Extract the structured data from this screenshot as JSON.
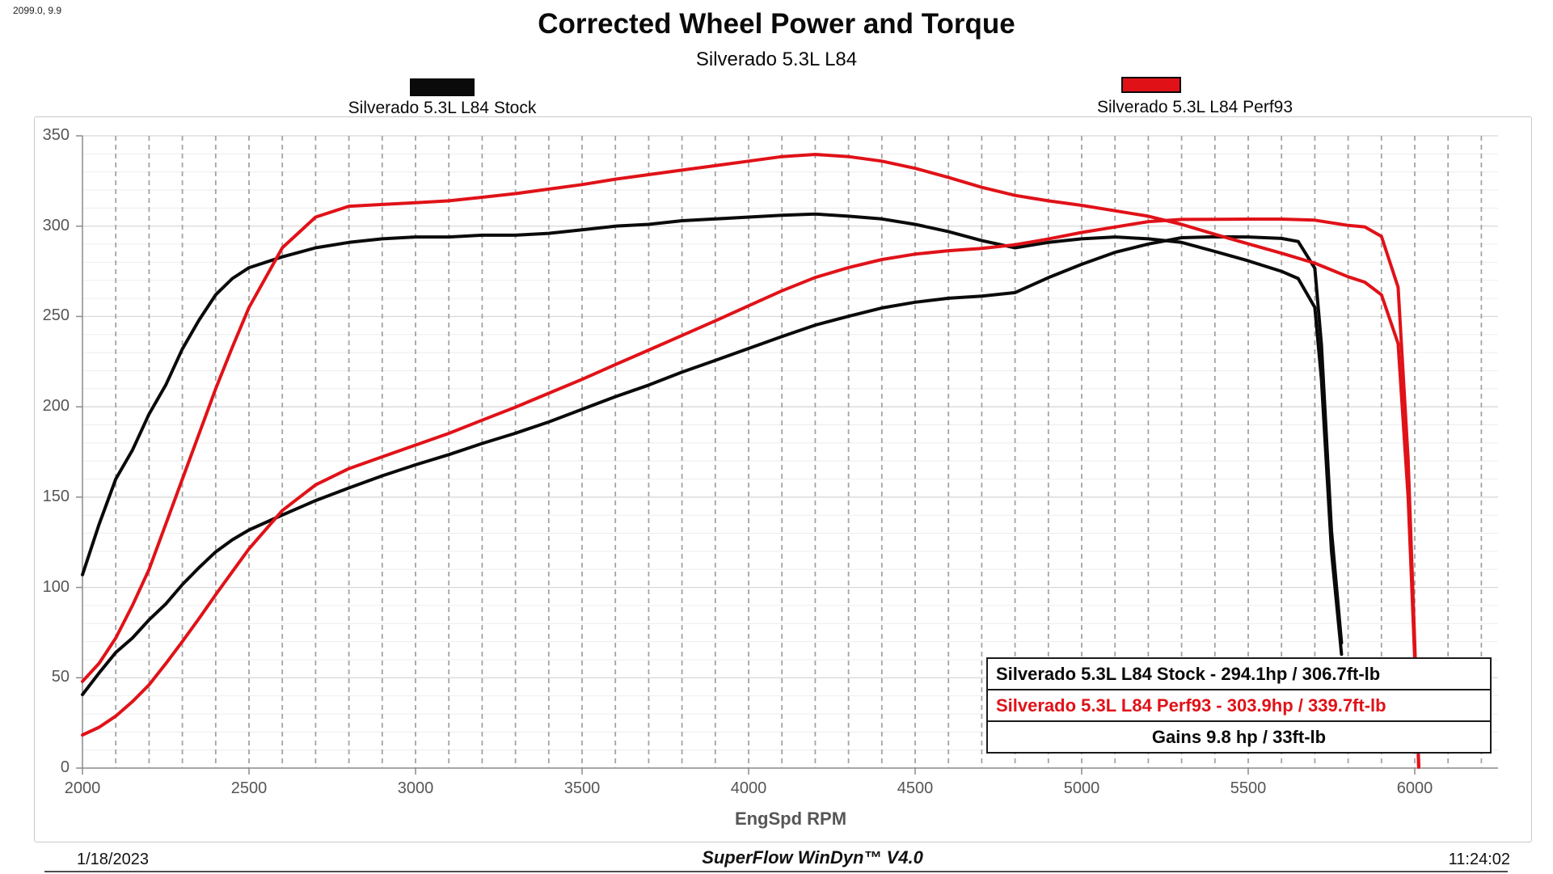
{
  "page": {
    "corner_readout": "2099.0, 9.9",
    "title": "Corrected Wheel Power and Torque",
    "subtitle": "Silverado 5.3L L84"
  },
  "legend": [
    {
      "label": "Silverado 5.3L L84 Stock",
      "color": "#0a0a0a"
    },
    {
      "label": "Silverado 5.3L L84 Perf93",
      "color": "#e01218"
    }
  ],
  "results_box": {
    "rows": [
      {
        "text": "Silverado 5.3L L84 Stock - 294.1hp / 306.7ft-lb",
        "color": "#0a0a0a"
      },
      {
        "text": "Silverado 5.3L L84 Perf93 - 303.9hp / 339.7ft-lb",
        "color": "#e01218"
      },
      {
        "text": "Gains 9.8 hp / 33ft-lb",
        "color": "#0a0a0a"
      }
    ]
  },
  "footer": {
    "date": "1/18/2023",
    "software": "SuperFlow WinDyn™ V4.0",
    "time": "11:24:02"
  },
  "chart_data": {
    "type": "line",
    "title": "Corrected Wheel Power and Torque",
    "subtitle": "Silverado 5.3L L84",
    "xlabel": "EngSpd RPM",
    "ylabel": "",
    "xlim": [
      2000,
      6250
    ],
    "ylim": [
      0,
      350
    ],
    "x_ticks": [
      2000,
      2500,
      3000,
      3500,
      4000,
      4500,
      5000,
      5500,
      6000
    ],
    "y_ticks": [
      0,
      50,
      100,
      150,
      200,
      250,
      300,
      350
    ],
    "x_minor_step": 100,
    "y_minor_step": 10,
    "grid": {
      "vertical_dashed": true,
      "horizontal": true
    },
    "legend_position": "top",
    "peaks": {
      "stock": {
        "power_hp": 294.1,
        "torque_ftlb": 306.7
      },
      "perf93": {
        "power_hp": 303.9,
        "torque_ftlb": 339.7
      },
      "gains": {
        "power_hp": 9.8,
        "torque_ftlb": 33
      }
    },
    "series": [
      {
        "name": "stock-torque",
        "run": "Silverado 5.3L L84 Stock",
        "unit": "ft-lb",
        "color": "#0a0a0a",
        "x": [
          2000,
          2050,
          2100,
          2150,
          2200,
          2250,
          2300,
          2350,
          2400,
          2450,
          2500,
          2600,
          2700,
          2800,
          2900,
          3000,
          3100,
          3200,
          3300,
          3400,
          3500,
          3600,
          3700,
          3800,
          3900,
          4000,
          4100,
          4200,
          4300,
          4400,
          4500,
          4600,
          4700,
          4800,
          4900,
          5000,
          5100,
          5200,
          5300,
          5400,
          5500,
          5600,
          5650,
          5700,
          5720,
          5750,
          5780
        ],
        "y": [
          107,
          135,
          160,
          176,
          196,
          212,
          232,
          248,
          262,
          271,
          277,
          283,
          288,
          291,
          293,
          294,
          294,
          295,
          295,
          296,
          298,
          300,
          301,
          303,
          304,
          305,
          306,
          306.7,
          305.5,
          304,
          301,
          297,
          292,
          288,
          291,
          293,
          294,
          293,
          291,
          286,
          280.8,
          275,
          271,
          255,
          215,
          120,
          63
        ]
      },
      {
        "name": "stock-power",
        "run": "Silverado 5.3L L84 Stock",
        "unit": "hp",
        "color": "#0a0a0a",
        "x": [
          2000,
          2050,
          2100,
          2150,
          2200,
          2250,
          2300,
          2350,
          2400,
          2450,
          2500,
          2600,
          2700,
          2800,
          2900,
          3000,
          3100,
          3200,
          3300,
          3400,
          3500,
          3600,
          3700,
          3800,
          3900,
          4000,
          4100,
          4200,
          4300,
          4400,
          4500,
          4600,
          4700,
          4800,
          4900,
          5000,
          5100,
          5200,
          5300,
          5400,
          5500,
          5600,
          5650,
          5700,
          5720,
          5750,
          5780
        ],
        "y": [
          40.7,
          52.7,
          64.0,
          72.0,
          82.1,
          90.8,
          101.6,
          111.0,
          119.7,
          126.4,
          131.8,
          140.1,
          148.1,
          155.1,
          161.8,
          167.9,
          173.5,
          179.7,
          185.4,
          191.6,
          198.6,
          205.6,
          212.0,
          219.2,
          225.7,
          232.3,
          238.9,
          245.2,
          250.1,
          254.7,
          257.9,
          260.1,
          261.3,
          263.2,
          271.5,
          278.9,
          285.5,
          290.1,
          293.6,
          294.1,
          294.0,
          293.2,
          291.5,
          276.7,
          234.2,
          131.4,
          69.3
        ]
      },
      {
        "name": "perf93-torque",
        "run": "Silverado 5.3L L84 Perf93",
        "unit": "ft-lb",
        "color": "#e01218",
        "x": [
          2000,
          2050,
          2100,
          2150,
          2200,
          2250,
          2300,
          2350,
          2400,
          2450,
          2500,
          2600,
          2700,
          2800,
          2900,
          3000,
          3100,
          3200,
          3300,
          3400,
          3500,
          3600,
          3700,
          3800,
          3900,
          4000,
          4100,
          4200,
          4300,
          4400,
          4500,
          4600,
          4700,
          4800,
          4900,
          5000,
          5100,
          5200,
          5300,
          5400,
          5500,
          5600,
          5700,
          5800,
          5850,
          5900,
          5950,
          5980,
          6000,
          6012
        ],
        "y": [
          48,
          58,
          72,
          90,
          110,
          135,
          160,
          185,
          210,
          233,
          255,
          288,
          305,
          311,
          312,
          313,
          314,
          316,
          318,
          320.5,
          323,
          326,
          328.5,
          331,
          333.5,
          336,
          338.5,
          339.7,
          338.5,
          336,
          332,
          327,
          321.5,
          317,
          314,
          311.5,
          308.5,
          305.5,
          301,
          295.5,
          290.2,
          285,
          279.5,
          272,
          269,
          262,
          235,
          150,
          60,
          0.5
        ]
      },
      {
        "name": "perf93-power",
        "run": "Silverado 5.3L L84 Perf93",
        "unit": "hp",
        "color": "#e01218",
        "x": [
          2000,
          2050,
          2100,
          2150,
          2200,
          2250,
          2300,
          2350,
          2400,
          2450,
          2500,
          2600,
          2700,
          2800,
          2900,
          3000,
          3100,
          3200,
          3300,
          3400,
          3500,
          3600,
          3700,
          3800,
          3900,
          4000,
          4100,
          4200,
          4300,
          4400,
          4500,
          4600,
          4700,
          4800,
          4900,
          5000,
          5100,
          5200,
          5300,
          5400,
          5500,
          5600,
          5700,
          5800,
          5850,
          5900,
          5950,
          5980,
          6000,
          6012
        ],
        "y": [
          18.3,
          22.6,
          28.8,
          36.8,
          46.1,
          57.8,
          70.1,
          82.8,
          96.0,
          108.7,
          121.4,
          142.6,
          156.8,
          165.8,
          172.3,
          178.8,
          185.3,
          192.6,
          199.8,
          207.5,
          215.2,
          223.4,
          231.4,
          239.5,
          247.6,
          255.9,
          264.2,
          271.6,
          277.1,
          281.5,
          284.5,
          286.4,
          287.7,
          289.7,
          292.9,
          296.5,
          299.5,
          302.5,
          303.7,
          303.8,
          303.9,
          303.9,
          303.3,
          300.4,
          299.6,
          294.3,
          266.2,
          170.8,
          68.5,
          1.1
        ]
      }
    ]
  },
  "style": {
    "minor_grid_color": "#ededed",
    "major_grid_color": "#d6d6d6",
    "dashed_grid_color": "#a3a3a3",
    "axis_color": "#8a8a8a",
    "tick_label_color": "#565656"
  }
}
